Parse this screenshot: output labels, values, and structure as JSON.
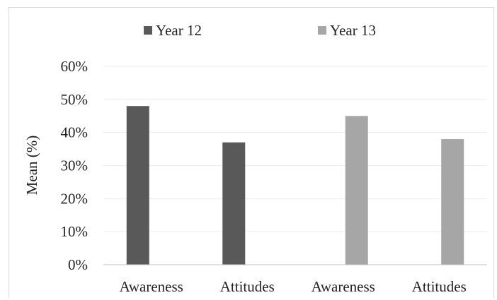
{
  "chart_data": {
    "type": "bar",
    "categories": [
      "Awareness",
      "Attitudes",
      "Awareness",
      "Attitudes"
    ],
    "series": [
      {
        "name": "Year 12",
        "color": "#595959",
        "values": [
          48,
          37,
          null,
          null
        ]
      },
      {
        "name": "Year 13",
        "color": "#a6a6a6",
        "values": [
          null,
          null,
          45,
          38
        ]
      }
    ],
    "ylabel": "Mean (%)",
    "xlabel": "",
    "title": "",
    "ylim": [
      0,
      60
    ],
    "yticks": [
      "0%",
      "10%",
      "20%",
      "30%",
      "40%",
      "50%",
      "60%"
    ],
    "grid": true,
    "legend_position": "top"
  }
}
